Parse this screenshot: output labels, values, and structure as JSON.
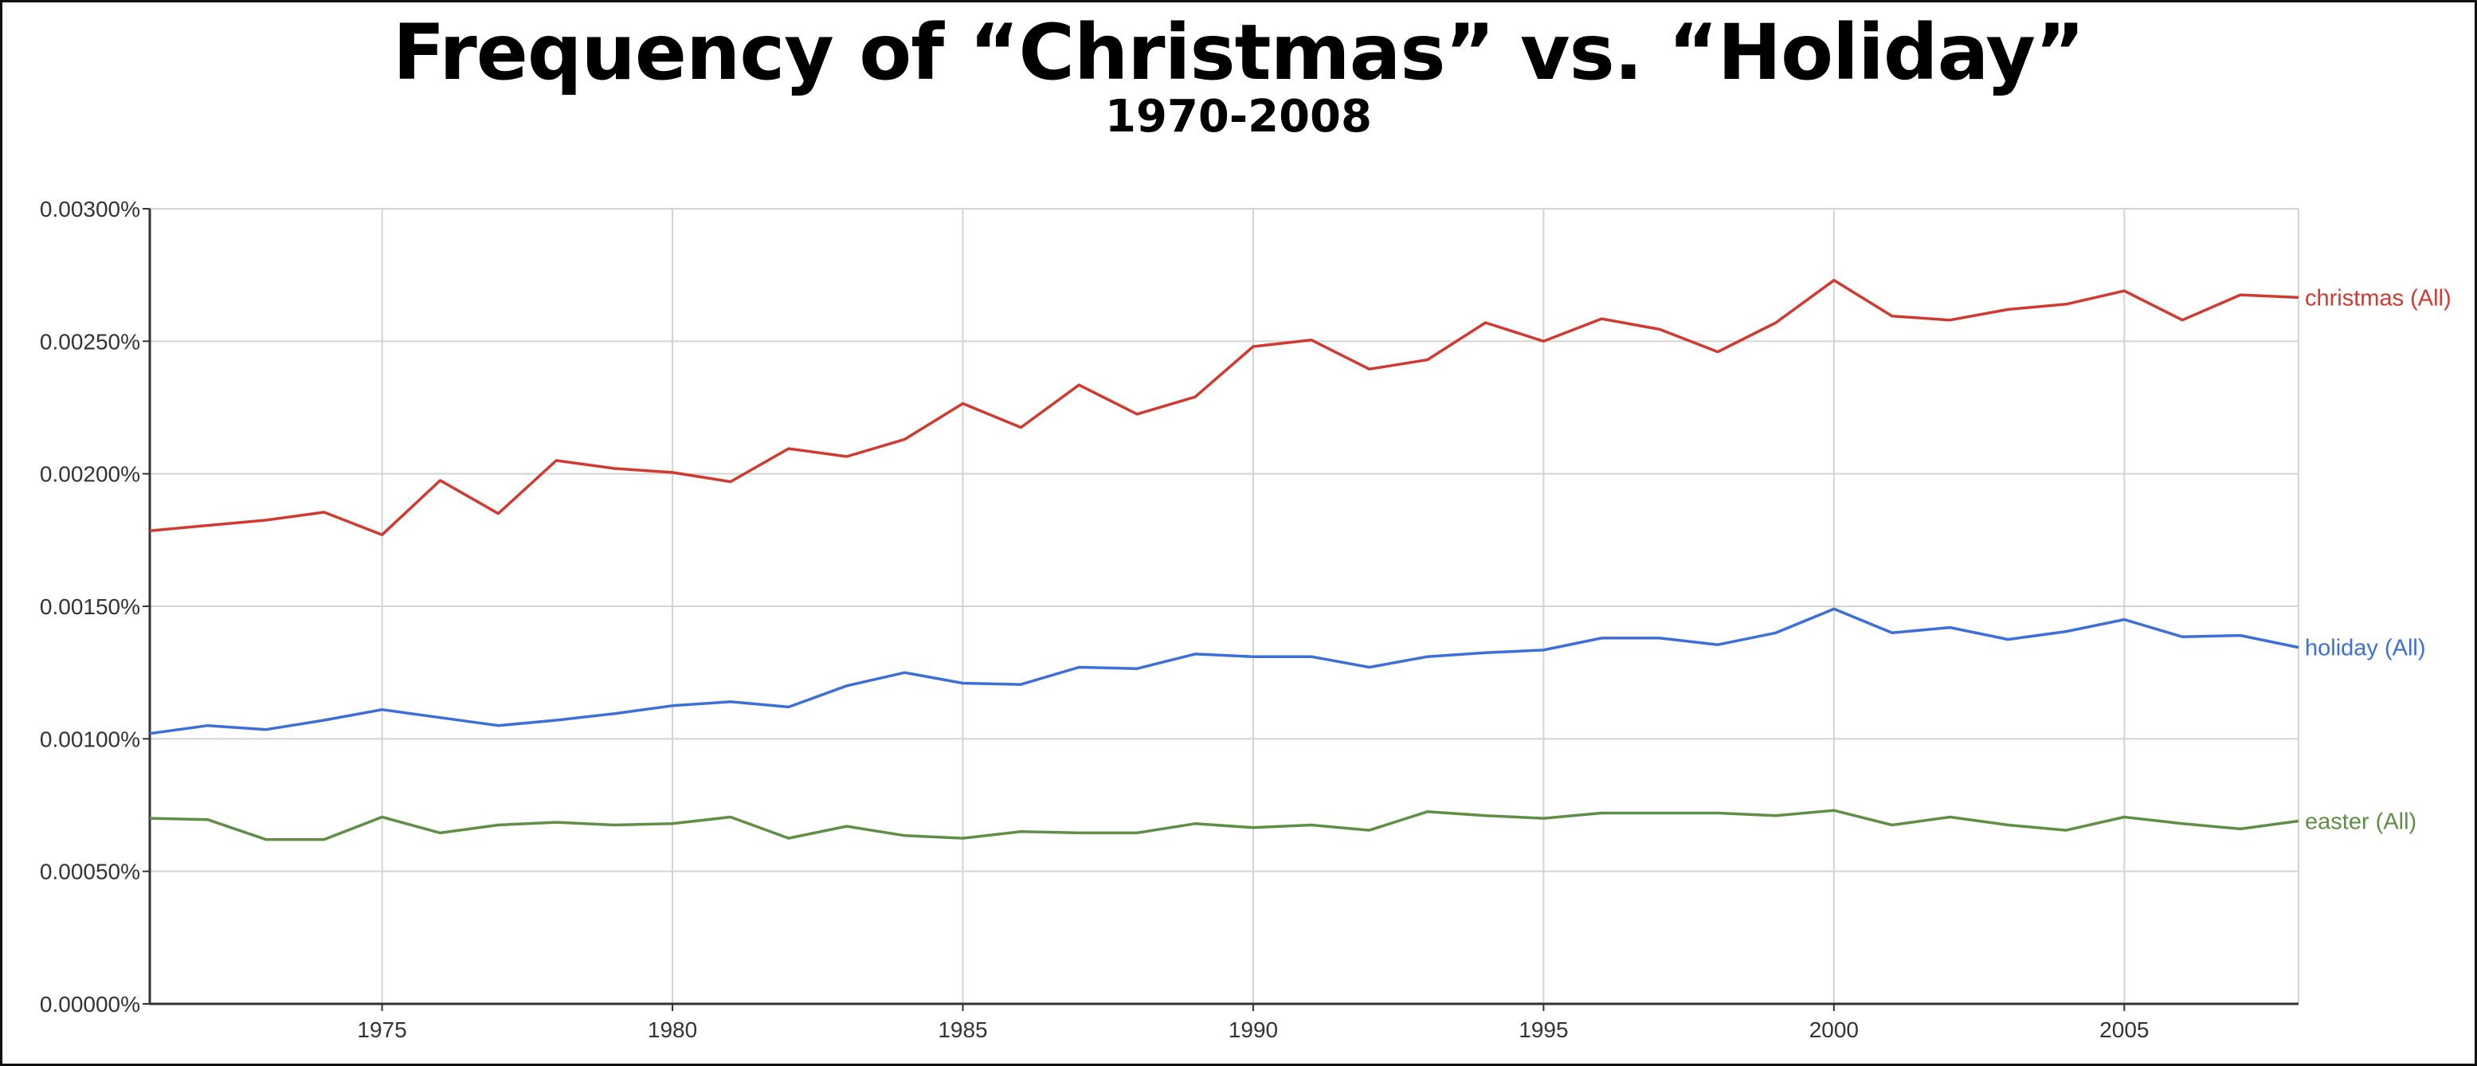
{
  "title": "Frequency of “Christmas” vs. “Holiday”",
  "subtitle": "1970-2008",
  "chart_data": {
    "type": "line",
    "title": "Frequency of “Christmas” vs. “Holiday”",
    "subtitle": "1970-2008",
    "xlabel": "",
    "ylabel": "",
    "xlim": [
      1971,
      2008
    ],
    "ylim": [
      0,
      0.003
    ],
    "x_ticks": [
      1975,
      1980,
      1985,
      1990,
      1995,
      2000,
      2005
    ],
    "x_tick_labels": [
      "1975",
      "1980",
      "1985",
      "1990",
      "1995",
      "2000",
      "2005"
    ],
    "y_ticks": [
      0,
      0.0005,
      0.001,
      0.0015,
      0.002,
      0.0025,
      0.003
    ],
    "y_tick_labels": [
      "0.00000%",
      "0.00050%",
      "0.00100%",
      "0.00150%",
      "0.00200%",
      "0.00250%",
      "0.00300%"
    ],
    "grid": true,
    "legend": "labels at right end of each line",
    "x": [
      1971,
      1972,
      1973,
      1974,
      1975,
      1976,
      1977,
      1978,
      1979,
      1980,
      1981,
      1982,
      1983,
      1984,
      1985,
      1986,
      1987,
      1988,
      1989,
      1990,
      1991,
      1992,
      1993,
      1994,
      1995,
      1996,
      1997,
      1998,
      1999,
      2000,
      2001,
      2002,
      2003,
      2004,
      2005,
      2006,
      2007,
      2008
    ],
    "series": [
      {
        "name": "christmas (All)",
        "color": "#d03a30",
        "values": [
          0.001785,
          0.001805,
          0.001825,
          0.001855,
          0.00177,
          0.001975,
          0.00185,
          0.00205,
          0.00202,
          0.002005,
          0.00197,
          0.002095,
          0.002065,
          0.00213,
          0.002265,
          0.002175,
          0.002335,
          0.002225,
          0.00229,
          0.00248,
          0.002505,
          0.002395,
          0.00243,
          0.00257,
          0.0025,
          0.002585,
          0.002545,
          0.00246,
          0.00257,
          0.00273,
          0.002595,
          0.00258,
          0.00262,
          0.00264,
          0.00269,
          0.00258,
          0.002675,
          0.002665
        ]
      },
      {
        "name": "holiday (All)",
        "color": "#3c6fd8",
        "values": [
          0.00102,
          0.00105,
          0.001035,
          0.00107,
          0.00111,
          0.00108,
          0.00105,
          0.00107,
          0.001095,
          0.001125,
          0.00114,
          0.00112,
          0.0012,
          0.00125,
          0.00121,
          0.001205,
          0.00127,
          0.001265,
          0.00132,
          0.00131,
          0.00131,
          0.00127,
          0.00131,
          0.001325,
          0.001335,
          0.00138,
          0.00138,
          0.001355,
          0.0014,
          0.00149,
          0.0014,
          0.00142,
          0.001375,
          0.001405,
          0.00145,
          0.001385,
          0.00139,
          0.001345
        ]
      },
      {
        "name": "easter (All)",
        "color": "#5f8f45",
        "values": [
          0.0007,
          0.000695,
          0.00062,
          0.00062,
          0.000705,
          0.000645,
          0.000675,
          0.000685,
          0.000675,
          0.00068,
          0.000705,
          0.000625,
          0.00067,
          0.000635,
          0.000625,
          0.00065,
          0.000645,
          0.000645,
          0.00068,
          0.000665,
          0.000675,
          0.000655,
          0.000725,
          0.00071,
          0.0007,
          0.00072,
          0.00072,
          0.00072,
          0.00071,
          0.00073,
          0.000675,
          0.000705,
          0.000675,
          0.000655,
          0.000705,
          0.00068,
          0.00066,
          0.00069
        ]
      }
    ]
  }
}
